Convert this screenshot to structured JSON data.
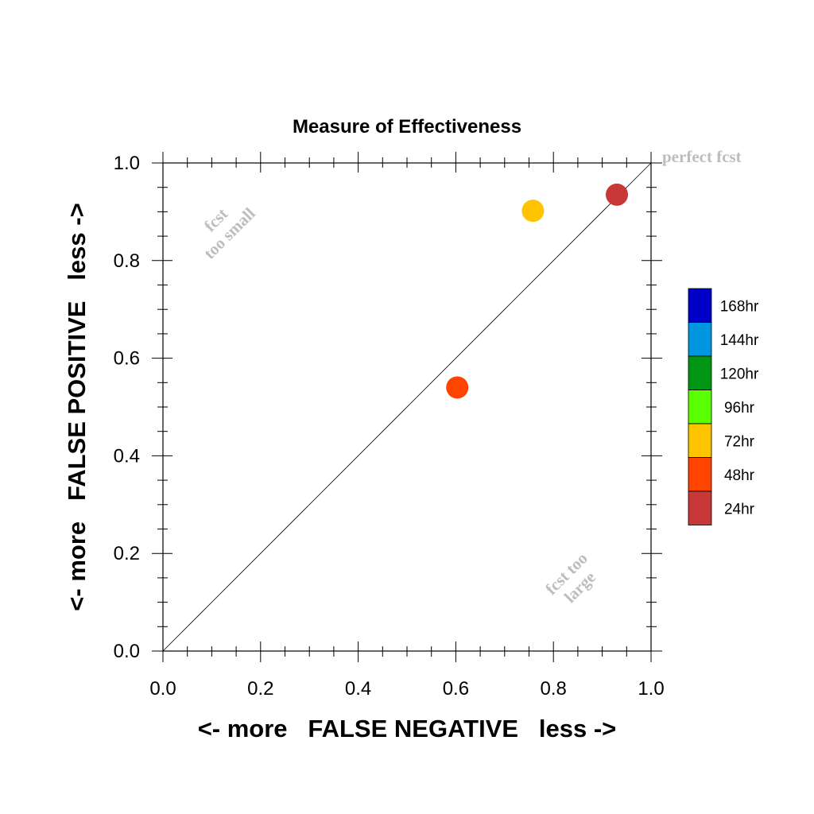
{
  "chart_data": {
    "type": "scatter",
    "title": "Measure of Effectiveness",
    "xlabel": "<- more   FALSE NEGATIVE   less ->",
    "ylabel": "<- more   FALSE POSITIVE   less ->",
    "xlim": [
      0.0,
      1.0
    ],
    "ylim": [
      0.0,
      1.0
    ],
    "x_ticks": [
      "0.0",
      "0.2",
      "0.4",
      "0.6",
      "0.8",
      "1.0"
    ],
    "y_ticks": [
      "0.0",
      "0.2",
      "0.4",
      "0.6",
      "0.8",
      "1.0"
    ],
    "grid": false,
    "reference_line": {
      "from": [
        0,
        0
      ],
      "to": [
        1,
        1
      ]
    },
    "annotations": {
      "perfect": "perfect fcst",
      "small_line1": "fcst",
      "small_line2": "too small",
      "large_line1": "fcst too",
      "large_line2": "large"
    },
    "legend": {
      "placement": "right",
      "entries": [
        {
          "label": "168hr",
          "color": "#0000c8"
        },
        {
          "label": "144hr",
          "color": "#0096e0"
        },
        {
          "label": "120hr",
          "color": "#009614"
        },
        {
          "label": "96hr",
          "color": "#5aff00"
        },
        {
          "label": "72hr",
          "color": "#ffc400"
        },
        {
          "label": "48hr",
          "color": "#ff4400"
        },
        {
          "label": "24hr",
          "color": "#c83838"
        }
      ]
    },
    "points": [
      {
        "lead": "24hr",
        "x": 0.93,
        "y": 0.935,
        "color": "#c83838"
      },
      {
        "lead": "48hr",
        "x": 0.603,
        "y": 0.54,
        "color": "#ff4400"
      },
      {
        "lead": "72hr",
        "x": 0.758,
        "y": 0.902,
        "color": "#ffc400"
      }
    ]
  }
}
